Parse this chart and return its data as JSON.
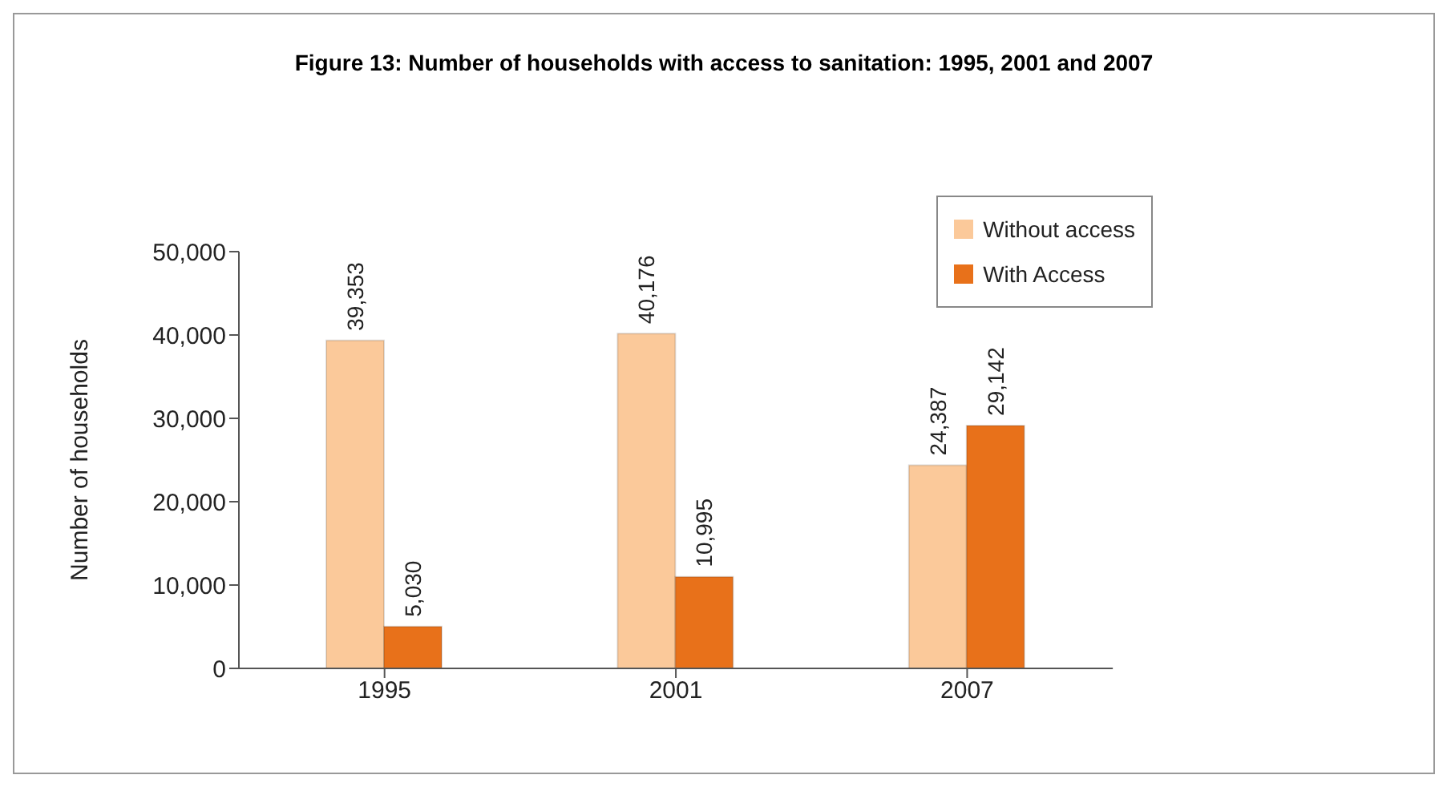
{
  "chart_data": {
    "type": "bar",
    "title": "Figure 13: Number of households with access to sanitation: 1995, 2001 and 2007",
    "ylabel": "Number of households",
    "categories": [
      "1995",
      "2001",
      "2007"
    ],
    "series": [
      {
        "name": "Without access",
        "color": "#fbc99a",
        "values": [
          39353,
          40176,
          24387
        ],
        "value_labels": [
          "39,353",
          "40,176",
          "24,387"
        ]
      },
      {
        "name": "With Access",
        "color": "#e8711a",
        "values": [
          5030,
          10995,
          29142
        ],
        "value_labels": [
          "5,030",
          "10,995",
          "29,142"
        ]
      }
    ],
    "ylim": [
      0,
      50000
    ],
    "yticks": [
      {
        "value": 0,
        "label": "0"
      },
      {
        "value": 10000,
        "label": "10,000"
      },
      {
        "value": 20000,
        "label": "20,000"
      },
      {
        "value": 30000,
        "label": "30,000"
      },
      {
        "value": 40000,
        "label": "40,000"
      },
      {
        "value": 50000,
        "label": "50,000"
      }
    ],
    "legend": "top right"
  }
}
